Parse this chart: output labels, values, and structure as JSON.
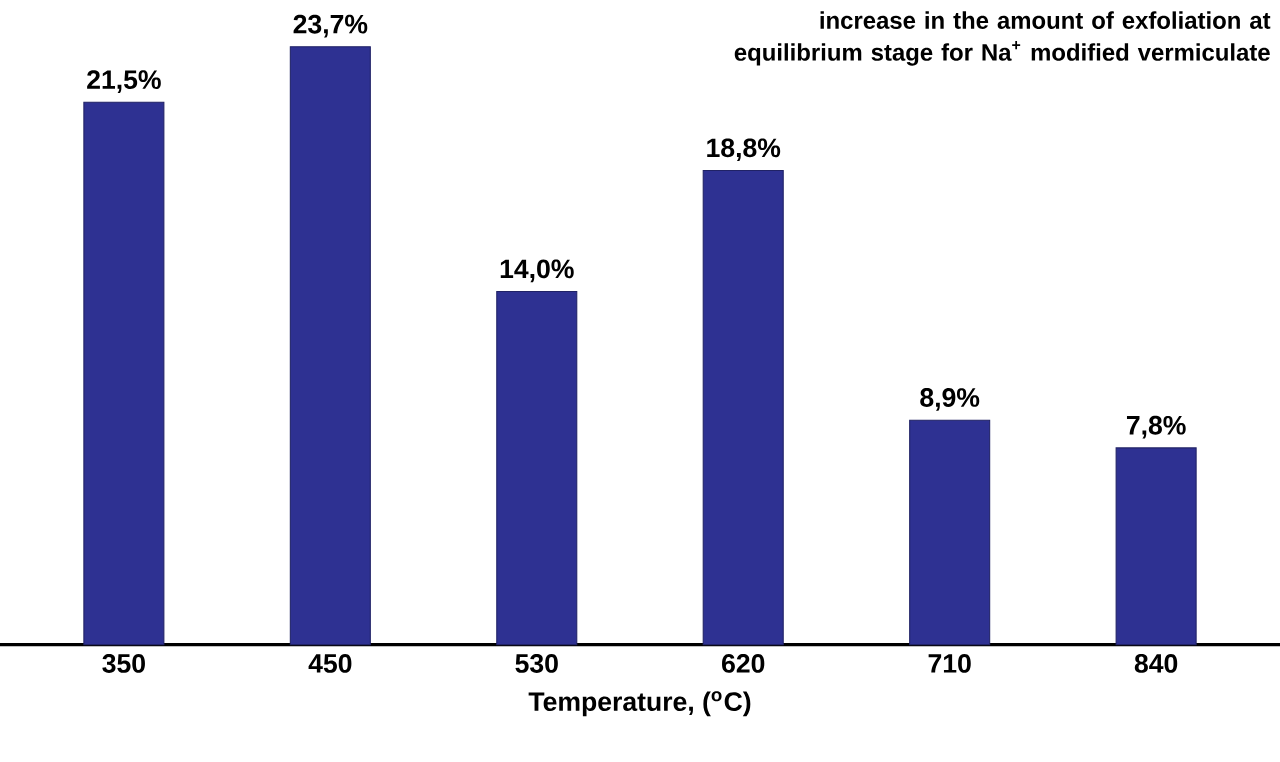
{
  "chart_data": {
    "type": "bar",
    "title": "increase in the amount of exfoliation at equilibrium stage for Na$^{+}$ modified vermiculate",
    "xlabel": "Temperature, ($^{o}$C)",
    "categories": [
      "350",
      "450",
      "530",
      "620",
      "710",
      "840"
    ],
    "values": [
      21.5,
      23.7,
      14.0,
      18.8,
      8.9,
      7.8
    ],
    "value_labels": [
      "21,5%",
      "23,7%",
      "14,0%",
      "18,8%",
      "8,9%",
      "7,8%"
    ],
    "color": "#2e3192"
  }
}
